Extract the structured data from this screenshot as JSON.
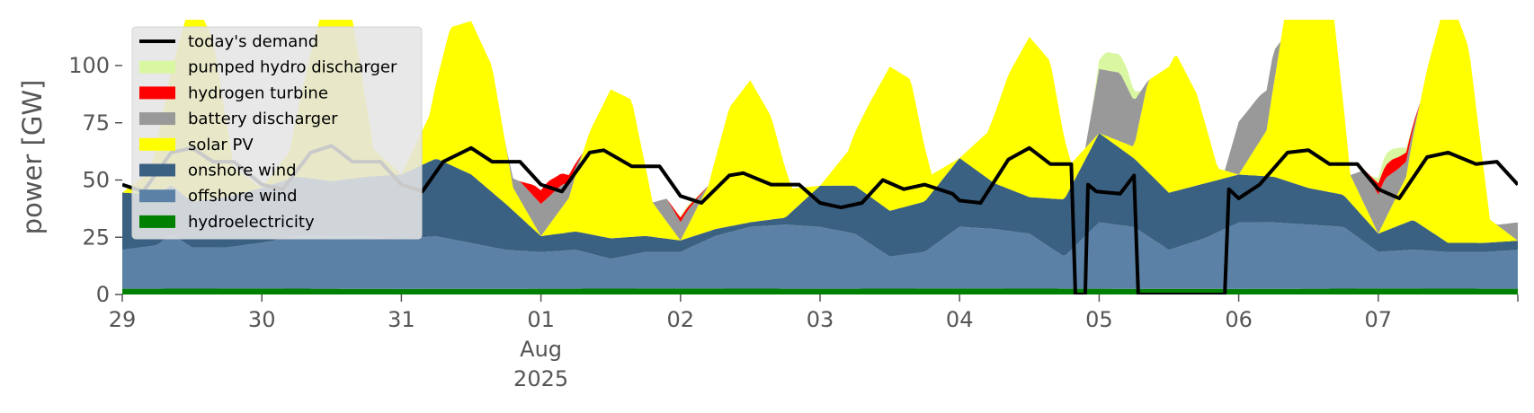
{
  "chart_data": {
    "type": "area",
    "title": "",
    "ylabel": "power [GW]",
    "xlabel": "",
    "ylim": [
      0,
      120
    ],
    "yticks": [
      0,
      25,
      50,
      75,
      100
    ],
    "x_range_days": [
      0,
      10
    ],
    "grid": false,
    "legend_position": "top-left",
    "x_tick_labels": [
      {
        "day": 0,
        "lines": [
          "29"
        ]
      },
      {
        "day": 1,
        "lines": [
          "30"
        ]
      },
      {
        "day": 2,
        "lines": [
          "31"
        ]
      },
      {
        "day": 3,
        "lines": [
          "01",
          "Aug",
          "2025"
        ]
      },
      {
        "day": 4,
        "lines": [
          "02"
        ]
      },
      {
        "day": 5,
        "lines": [
          "03"
        ]
      },
      {
        "day": 6,
        "lines": [
          "04"
        ]
      },
      {
        "day": 7,
        "lines": [
          "05"
        ]
      },
      {
        "day": 8,
        "lines": [
          "06"
        ]
      },
      {
        "day": 9,
        "lines": [
          "07"
        ]
      }
    ],
    "series": [
      {
        "name": "hydroelectricity",
        "color": "#008000",
        "points": [
          [
            0,
            2.5
          ],
          [
            1,
            2.6
          ],
          [
            2,
            2.4
          ],
          [
            3,
            2.5
          ],
          [
            4,
            2.6
          ],
          [
            5,
            2.5
          ],
          [
            6,
            2.6
          ],
          [
            7,
            2.5
          ],
          [
            8,
            2.4
          ],
          [
            9,
            2.6
          ],
          [
            10,
            2.5
          ]
        ]
      },
      {
        "name": "offshore wind",
        "color": "#5b82a6",
        "points": [
          [
            0,
            17
          ],
          [
            0.25,
            19
          ],
          [
            0.35,
            24
          ],
          [
            0.5,
            18
          ],
          [
            0.75,
            18
          ],
          [
            1,
            20
          ],
          [
            1.25,
            23
          ],
          [
            1.5,
            23
          ],
          [
            1.75,
            23
          ],
          [
            2,
            22
          ],
          [
            2.25,
            23
          ],
          [
            2.5,
            20
          ],
          [
            2.75,
            17
          ],
          [
            3,
            16
          ],
          [
            3.25,
            17
          ],
          [
            3.5,
            13
          ],
          [
            3.75,
            16
          ],
          [
            4,
            16
          ],
          [
            4.25,
            23
          ],
          [
            4.5,
            27
          ],
          [
            4.75,
            28
          ],
          [
            5,
            27
          ],
          [
            5.25,
            24
          ],
          [
            5.5,
            14
          ],
          [
            5.75,
            16
          ],
          [
            6,
            27
          ],
          [
            6.25,
            26
          ],
          [
            6.5,
            24
          ],
          [
            6.75,
            14
          ],
          [
            7,
            29
          ],
          [
            7.25,
            27
          ],
          [
            7.5,
            17
          ],
          [
            7.75,
            22
          ],
          [
            8,
            29
          ],
          [
            8.25,
            29
          ],
          [
            8.5,
            28
          ],
          [
            8.75,
            27
          ],
          [
            9,
            16
          ],
          [
            9.25,
            17
          ],
          [
            9.5,
            16
          ],
          [
            9.75,
            16
          ],
          [
            10,
            17
          ]
        ]
      },
      {
        "name": "onshore wind",
        "color": "#3b6182",
        "points": [
          [
            0,
            25
          ],
          [
            0.25,
            22
          ],
          [
            0.5,
            20
          ],
          [
            0.75,
            22
          ],
          [
            1,
            24
          ],
          [
            1.25,
            26
          ],
          [
            1.5,
            24
          ],
          [
            1.75,
            26
          ],
          [
            2,
            28
          ],
          [
            2.25,
            34
          ],
          [
            2.5,
            30
          ],
          [
            2.75,
            20
          ],
          [
            3,
            7
          ],
          [
            3.25,
            8
          ],
          [
            3.5,
            9
          ],
          [
            3.75,
            7
          ],
          [
            4,
            5
          ],
          [
            4.25,
            3
          ],
          [
            4.5,
            2
          ],
          [
            4.75,
            3
          ],
          [
            5,
            18
          ],
          [
            5.25,
            21
          ],
          [
            5.5,
            20
          ],
          [
            5.75,
            22
          ],
          [
            6,
            30
          ],
          [
            6.25,
            20
          ],
          [
            6.5,
            16
          ],
          [
            6.75,
            25
          ],
          [
            7,
            39
          ],
          [
            7.25,
            30
          ],
          [
            7.5,
            25
          ],
          [
            7.75,
            24
          ],
          [
            8,
            21
          ],
          [
            8.25,
            20
          ],
          [
            8.5,
            16
          ],
          [
            8.75,
            14
          ],
          [
            9,
            8
          ],
          [
            9.25,
            13
          ],
          [
            9.5,
            4
          ],
          [
            9.75,
            4
          ],
          [
            10,
            4
          ]
        ]
      },
      {
        "name": "solar PV",
        "color": "#ffff00",
        "points": [
          [
            0,
            0
          ],
          [
            0.2,
            10
          ],
          [
            0.35,
            50
          ],
          [
            0.5,
            90
          ],
          [
            0.65,
            70
          ],
          [
            0.8,
            12
          ],
          [
            1,
            0
          ],
          [
            1.2,
            12
          ],
          [
            1.35,
            55
          ],
          [
            1.5,
            90
          ],
          [
            1.65,
            70
          ],
          [
            1.8,
            12
          ],
          [
            2,
            0
          ],
          [
            2.2,
            20
          ],
          [
            2.35,
            60
          ],
          [
            2.5,
            67
          ],
          [
            2.65,
            55
          ],
          [
            2.8,
            10
          ],
          [
            3,
            0
          ],
          [
            3.2,
            15
          ],
          [
            3.35,
            45
          ],
          [
            3.5,
            65
          ],
          [
            3.65,
            60
          ],
          [
            3.8,
            15
          ],
          [
            4,
            0
          ],
          [
            4.2,
            20
          ],
          [
            4.35,
            52
          ],
          [
            4.5,
            62
          ],
          [
            4.65,
            45
          ],
          [
            4.8,
            10
          ],
          [
            5,
            0
          ],
          [
            5.2,
            15
          ],
          [
            5.35,
            40
          ],
          [
            5.5,
            63
          ],
          [
            5.65,
            55
          ],
          [
            5.8,
            8
          ],
          [
            6,
            0
          ],
          [
            6.2,
            20
          ],
          [
            6.35,
            50
          ],
          [
            6.5,
            70
          ],
          [
            6.65,
            60
          ],
          [
            6.8,
            10
          ],
          [
            7,
            0
          ],
          [
            7.25,
            5
          ],
          [
            7.35,
            40
          ],
          [
            7.55,
            60
          ],
          [
            7.7,
            40
          ],
          [
            7.85,
            5
          ],
          [
            8,
            0
          ],
          [
            8.2,
            20
          ],
          [
            8.35,
            80
          ],
          [
            8.5,
            120
          ],
          [
            8.65,
            95
          ],
          [
            8.8,
            12
          ],
          [
            9,
            0
          ],
          [
            9.2,
            20
          ],
          [
            9.35,
            70
          ],
          [
            9.5,
            110
          ],
          [
            9.65,
            85
          ],
          [
            9.8,
            10
          ],
          [
            10,
            0
          ]
        ]
      },
      {
        "name": "battery discharger",
        "color": "#999999",
        "points": [
          [
            0,
            0
          ],
          [
            2.75,
            0
          ],
          [
            2.85,
            8
          ],
          [
            3,
            14
          ],
          [
            3.15,
            10
          ],
          [
            3.3,
            0
          ],
          [
            3.8,
            0
          ],
          [
            3.9,
            10
          ],
          [
            4.05,
            7
          ],
          [
            4.2,
            0
          ],
          [
            6.9,
            0
          ],
          [
            7,
            28
          ],
          [
            7.15,
            30
          ],
          [
            7.25,
            20
          ],
          [
            7.35,
            0
          ],
          [
            7.9,
            0
          ],
          [
            8,
            23
          ],
          [
            8.15,
            20
          ],
          [
            8.25,
            15
          ],
          [
            8.3,
            0
          ],
          [
            8.8,
            0
          ],
          [
            8.9,
            15
          ],
          [
            9.05,
            18
          ],
          [
            9.15,
            10
          ],
          [
            9.3,
            0
          ],
          [
            9.85,
            0
          ],
          [
            10,
            8
          ]
        ]
      },
      {
        "name": "hydrogen turbine",
        "color": "#ff0000",
        "points": [
          [
            0,
            0
          ],
          [
            2.85,
            0
          ],
          [
            2.95,
            5
          ],
          [
            3.05,
            7
          ],
          [
            3.15,
            5
          ],
          [
            3.3,
            0
          ],
          [
            3.9,
            0
          ],
          [
            4,
            2
          ],
          [
            4.1,
            1
          ],
          [
            4.2,
            0
          ],
          [
            8.9,
            0
          ],
          [
            9,
            5
          ],
          [
            9.1,
            6
          ],
          [
            9.2,
            4
          ],
          [
            9.3,
            0
          ],
          [
            10,
            0
          ]
        ]
      },
      {
        "name": "pumped hydro discharger",
        "color": "#d9f7a1",
        "points": [
          [
            0,
            0
          ],
          [
            3.95,
            0
          ],
          [
            4.05,
            1
          ],
          [
            4.15,
            0
          ],
          [
            6.95,
            0
          ],
          [
            7.05,
            8
          ],
          [
            7.2,
            8
          ],
          [
            7.3,
            0
          ],
          [
            8.95,
            0
          ],
          [
            9.05,
            5
          ],
          [
            9.15,
            4
          ],
          [
            9.25,
            0
          ],
          [
            10,
            0
          ]
        ]
      }
    ],
    "demand": {
      "name": "today's demand",
      "color": "#000000",
      "points": [
        [
          0,
          48
        ],
        [
          0.15,
          45
        ],
        [
          0.35,
          62
        ],
        [
          0.5,
          64
        ],
        [
          0.65,
          58
        ],
        [
          0.8,
          58
        ],
        [
          1,
          48
        ],
        [
          1.15,
          46
        ],
        [
          1.35,
          62
        ],
        [
          1.5,
          65
        ],
        [
          1.65,
          58
        ],
        [
          1.85,
          58
        ],
        [
          2,
          48
        ],
        [
          2.15,
          45
        ],
        [
          2.3,
          58
        ],
        [
          2.5,
          64
        ],
        [
          2.65,
          58
        ],
        [
          2.85,
          58
        ],
        [
          3,
          48
        ],
        [
          3.15,
          45
        ],
        [
          3.35,
          62
        ],
        [
          3.45,
          63
        ],
        [
          3.65,
          56
        ],
        [
          3.85,
          56
        ],
        [
          4,
          43
        ],
        [
          4.15,
          40
        ],
        [
          4.35,
          52
        ],
        [
          4.45,
          53
        ],
        [
          4.65,
          48
        ],
        [
          4.85,
          48
        ],
        [
          5,
          40
        ],
        [
          5.15,
          38
        ],
        [
          5.3,
          40
        ],
        [
          5.45,
          50
        ],
        [
          5.6,
          46
        ],
        [
          5.75,
          48
        ],
        [
          5.95,
          44
        ],
        [
          6,
          41
        ],
        [
          6.15,
          40
        ],
        [
          6.35,
          59
        ],
        [
          6.5,
          64
        ],
        [
          6.65,
          57
        ],
        [
          6.8,
          57
        ],
        [
          6.83,
          0
        ],
        [
          6.9,
          0
        ],
        [
          6.92,
          48
        ],
        [
          6.98,
          45
        ],
        [
          7.15,
          44
        ],
        [
          7.25,
          52
        ],
        [
          7.28,
          0
        ],
        [
          7.38,
          0
        ],
        [
          7.3,
          0
        ],
        [
          7.9,
          0
        ],
        [
          7.93,
          46
        ],
        [
          8,
          42
        ],
        [
          8.15,
          48
        ],
        [
          8.35,
          62
        ],
        [
          8.5,
          63
        ],
        [
          8.65,
          57
        ],
        [
          8.85,
          57
        ],
        [
          9,
          46
        ],
        [
          9.15,
          42
        ],
        [
          9.35,
          60
        ],
        [
          9.5,
          62
        ],
        [
          9.7,
          57
        ],
        [
          9.85,
          58
        ],
        [
          10,
          48
        ]
      ]
    }
  }
}
